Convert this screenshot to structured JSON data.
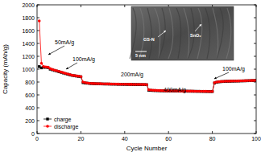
{
  "chart_data": {
    "type": "line",
    "x_label": "Cycle Number",
    "y_label": "Capacity (mAh/g)",
    "x": [
      1,
      2,
      3,
      4,
      5,
      6,
      7,
      8,
      9,
      10,
      11,
      12,
      13,
      14,
      15,
      16,
      17,
      18,
      19,
      20,
      21,
      22,
      23,
      24,
      25,
      26,
      27,
      28,
      29,
      30,
      31,
      32,
      33,
      34,
      35,
      36,
      37,
      38,
      39,
      40,
      41,
      42,
      43,
      44,
      45,
      46,
      47,
      48,
      49,
      50,
      51,
      52,
      53,
      54,
      55,
      56,
      57,
      58,
      59,
      60,
      61,
      62,
      63,
      64,
      65,
      66,
      67,
      68,
      69,
      70,
      71,
      72,
      73,
      74,
      75,
      76,
      77,
      78,
      79,
      80,
      81,
      82,
      83,
      84,
      85,
      86,
      87,
      88,
      89,
      90,
      91,
      92,
      93,
      94,
      95,
      96,
      97,
      98,
      99,
      100
    ],
    "series": [
      {
        "name": "charge",
        "color": "#000000",
        "marker": "square",
        "line_style": "solid",
        "values": [
          1040,
          1020,
          1030,
          1028,
          1025,
          1000,
          990,
          980,
          970,
          960,
          950,
          940,
          930,
          920,
          912,
          904,
          898,
          892,
          887,
          882,
          790,
          785,
          782,
          778,
          776,
          774,
          773,
          772,
          771,
          770,
          769,
          769,
          768,
          767,
          767,
          766,
          765,
          765,
          764,
          764,
          763,
          763,
          762,
          762,
          761,
          761,
          760,
          760,
          759,
          759,
          672,
          670,
          668,
          667,
          666,
          665,
          664,
          663,
          662,
          662,
          661,
          661,
          660,
          660,
          659,
          659,
          658,
          658,
          657,
          657,
          656,
          656,
          655,
          655,
          654,
          654,
          653,
          653,
          652,
          652,
          785,
          797,
          803,
          806,
          808,
          810,
          811,
          812,
          813,
          814,
          815,
          816,
          817,
          818,
          819,
          820,
          821,
          822,
          823,
          824
        ]
      },
      {
        "name": "discharge",
        "color": "#ff0000",
        "marker": "circle",
        "line_style": "solid",
        "values": [
          1750,
          1090,
          1040,
          1035,
          1030,
          1010,
          995,
          985,
          975,
          965,
          955,
          945,
          935,
          925,
          915,
          905,
          900,
          895,
          890,
          885,
          800,
          790,
          785,
          780,
          778,
          776,
          775,
          774,
          773,
          772,
          771,
          770,
          770,
          769,
          768,
          768,
          767,
          766,
          766,
          765,
          765,
          764,
          764,
          763,
          763,
          762,
          762,
          761,
          761,
          760,
          680,
          675,
          672,
          670,
          668,
          667,
          666,
          665,
          664,
          663,
          663,
          662,
          662,
          661,
          661,
          660,
          660,
          659,
          659,
          658,
          658,
          657,
          657,
          656,
          656,
          655,
          655,
          654,
          654,
          653,
          790,
          800,
          805,
          808,
          810,
          812,
          813,
          814,
          815,
          816,
          816,
          817,
          818,
          819,
          820,
          821,
          822,
          823,
          824,
          825
        ]
      }
    ],
    "xlim": [
      0,
      100
    ],
    "xticks": [
      0,
      20,
      40,
      60,
      80,
      100
    ],
    "ylim": [
      0,
      2000
    ],
    "yticks": [
      0,
      200,
      400,
      600,
      800,
      1000,
      1200,
      1400,
      1600,
      1800,
      2000
    ],
    "annotations": [
      "50mA/g",
      "100mA/g",
      "200mA/g",
      "400mA/g",
      "100mA/g",
      "GS-N",
      "SnO₂",
      "5 nm"
    ],
    "legend": "lower left",
    "grid": false
  }
}
